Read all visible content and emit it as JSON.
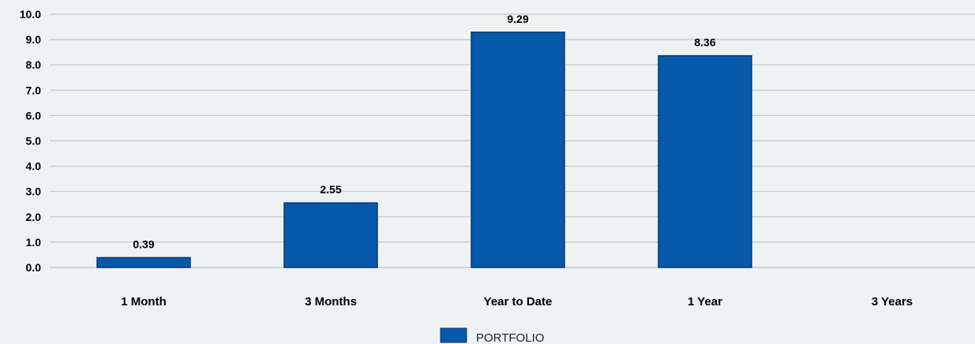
{
  "chart_data": {
    "type": "bar",
    "categories": [
      "1 Month",
      "3 Months",
      "Year to Date",
      "1 Year",
      "3 Years"
    ],
    "series": [
      {
        "name": "PORTFOLIO",
        "values": [
          0.39,
          2.55,
          9.29,
          8.36,
          null
        ],
        "data_labels": [
          "0.39",
          "2.55",
          "9.29",
          "8.36",
          ""
        ]
      }
    ],
    "ylim": [
      0,
      10
    ],
    "yticks": [
      0,
      1,
      2,
      3,
      4,
      5,
      6,
      7,
      8,
      9,
      10
    ],
    "ytick_labels": [
      "0.0",
      "1.0",
      "2.0",
      "3.0",
      "4.0",
      "5.0",
      "6.0",
      "7.0",
      "8.0",
      "9.0",
      "10.0"
    ],
    "grid": true,
    "legend_position": "bottom-center",
    "colors": {
      "bar": "#0759a9",
      "bar_border": "#0a3a70",
      "grid": "#c4c6c8",
      "background": "#eef2f3"
    }
  }
}
